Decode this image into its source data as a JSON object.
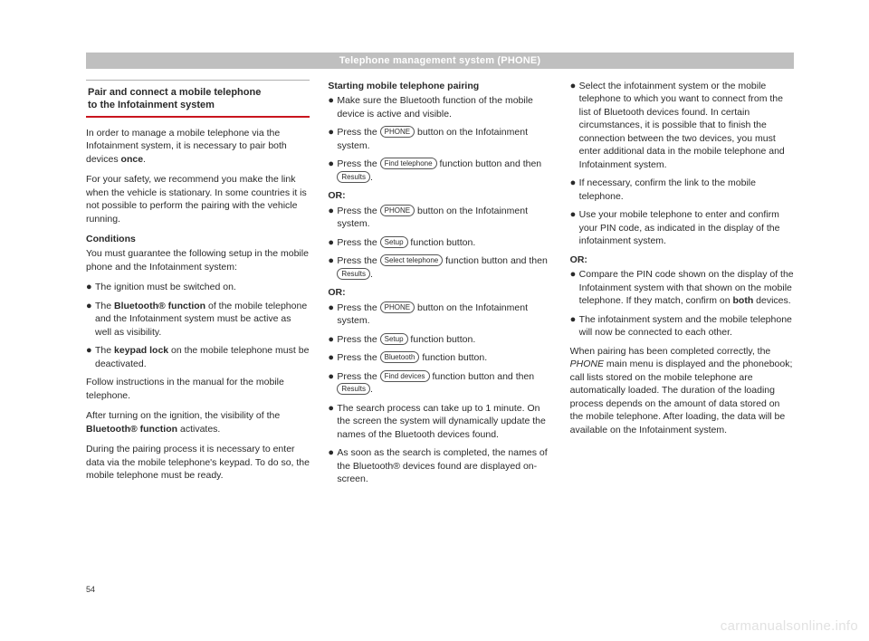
{
  "header": "Telephone management system (PHONE)",
  "pageNumber": "54",
  "watermark": "carmanualsonline.info",
  "col1": {
    "boxTitle1": "Pair and connect a mobile telephone",
    "boxTitle2": "to the Infotainment system",
    "p1a": "In order to manage a mobile telephone via the Infotainment system, it is necessary to pair both devices ",
    "p1b": "once",
    "p1c": ".",
    "p2": "For your safety, we recommend you make the link when the vehicle is stationary. In some countries it is not possible to perform the pairing with the vehicle running.",
    "conditionsHead": "Conditions",
    "p3": "You must guarantee the following setup in the mobile phone and the Infotainment system:",
    "b1": "The ignition must be switched on.",
    "b2a": "The ",
    "b2b": "Bluetooth® function",
    "b2c": " of the mobile telephone and the Infotainment system must be active as well as visibility.",
    "b3a": "The ",
    "b3b": "keypad lock",
    "b3c": " on the mobile telephone must be deactivated.",
    "p4": "Follow instructions in the manual for the mobile telephone.",
    "p5a": "After turning on the ignition, the visibility of the ",
    "p5b": "Bluetooth® function",
    "p5c": " activates.",
    "p6": "During the pairing process it is necessary to enter data via the mobile telephone's keypad. To do so, the mobile telephone must be ready."
  },
  "col2": {
    "head": "Starting mobile telephone pairing",
    "b1": "Make sure the Bluetooth function of the mobile device is active and visible.",
    "b2a": "Press the ",
    "b2btn": "PHONE",
    "b2b": " button on the Infotainment system.",
    "b3a": "Press the ",
    "b3btn": "Find telephone",
    "b3b": " function button and then ",
    "b3btn2": "Results",
    "b3c": ".",
    "or": "OR:",
    "b4a": "Press the ",
    "b4btn": "PHONE",
    "b4b": " button on the Infotainment system.",
    "b5a": "Press the ",
    "b5btn": "Setup",
    "b5b": " function button.",
    "b6a": "Press the ",
    "b6btn": "Select telephone",
    "b6b": " function button and then ",
    "b6btn2": "Results",
    "b6c": ".",
    "b7a": "Press the ",
    "b7btn": "PHONE",
    "b7b": " button on the Infotainment system.",
    "b8a": "Press the ",
    "b8btn": "Setup",
    "b8b": " function button.",
    "b9a": "Press the ",
    "b9btn": "Bluetooth",
    "b9b": " function button.",
    "b10a": "Press the ",
    "b10btn": "Find devices",
    "b10b": " function button and then ",
    "b10btn2": "Results",
    "b10c": ".",
    "b11": "The search process can take up to 1 minute. On the screen the system will dynamically update the names of the Bluetooth devices found.",
    "b12": "As soon as the search is completed, the names of the Bluetooth® devices found are displayed on-screen."
  },
  "col3": {
    "b1": "Select the infotainment system or the mobile telephone to which you want to connect from the list of Bluetooth devices found. In certain circumstances, it is possible that to finish the connection between the two devices, you must enter additional data in the mobile telephone and Infotainment system.",
    "b2": "If necessary, confirm the link to the mobile telephone.",
    "b3": "Use your mobile telephone to enter and confirm your PIN code, as indicated in the display of the infotainment system.",
    "or": "OR:",
    "b4a": "Compare the PIN code shown on the display of the Infotainment system with that shown on the mobile telephone. If they match, confirm on ",
    "b4b": "both",
    "b4c": " devices.",
    "b5": "The infotainment system and the mobile telephone will now be connected to each other.",
    "p1a": "When pairing has been completed correctly, the ",
    "p1b": "PHONE",
    "p1c": " main menu is displayed and the phonebook; call lists stored on the mobile telephone are automatically loaded. The duration of the loading process depends on the amount of data stored on the mobile telephone. After loading, the data will be available on the Infotainment system."
  }
}
